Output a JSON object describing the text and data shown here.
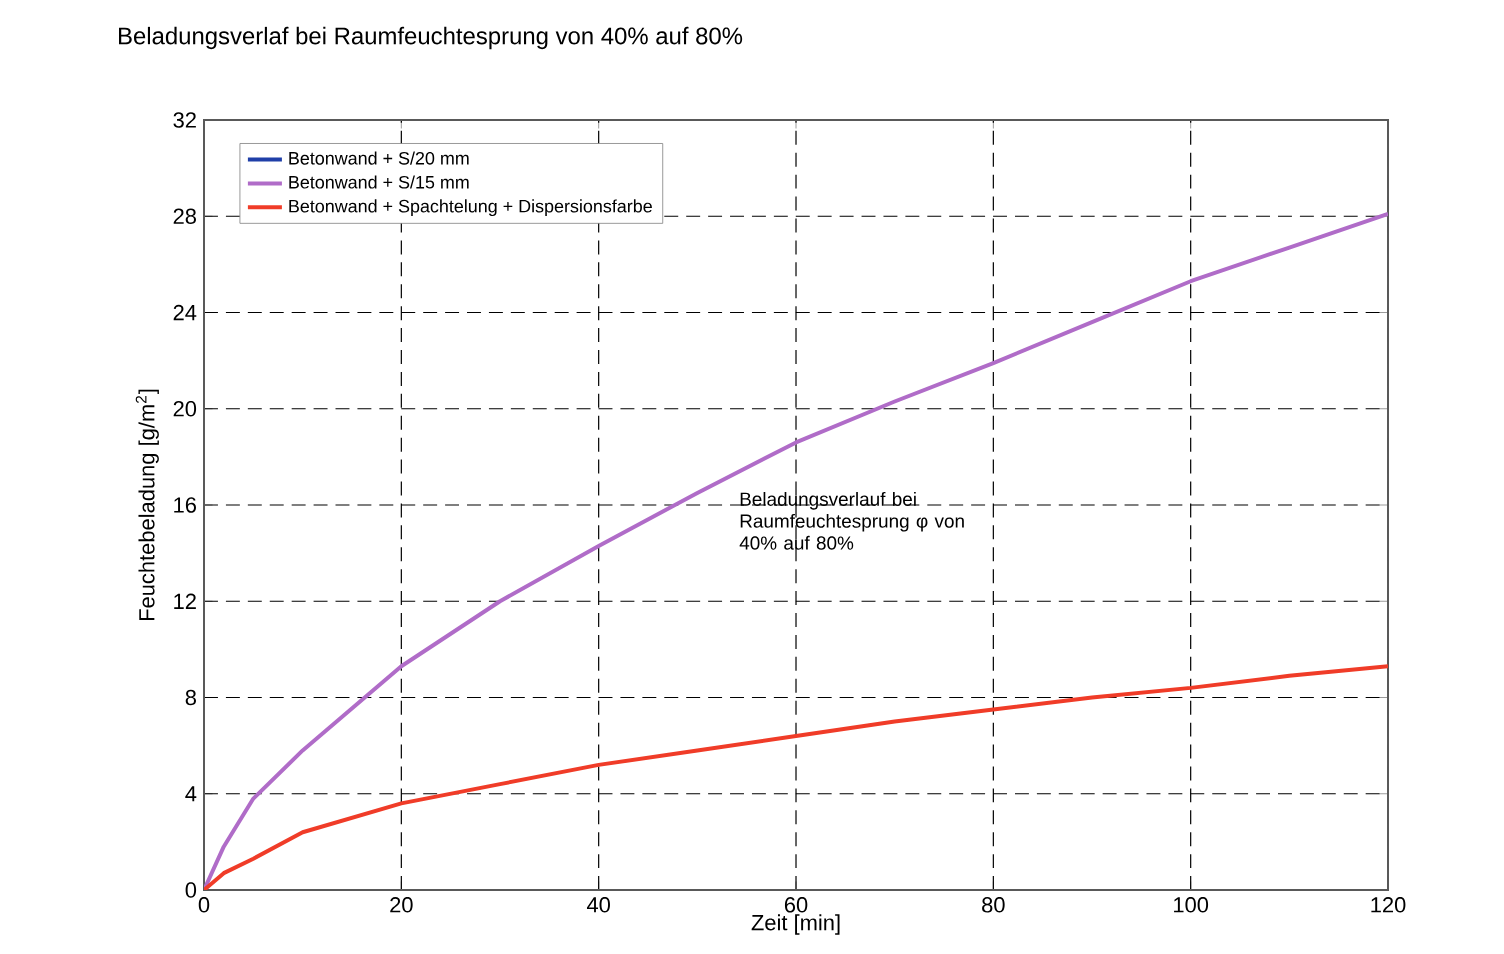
{
  "chart_data": {
    "type": "line",
    "title": "Beladungsverlaf bei Raumfeuchtesprung von 40% auf 80%",
    "xlabel": "Zeit [min]",
    "ylabel": "Feuchtebeladung [g/m$^{2}$]",
    "annotations": [
      "Beladungsverlauf bei Raumfeuchtesprung φ von 40% auf 80%"
    ],
    "x": [
      0,
      2,
      5,
      10,
      20,
      30,
      40,
      50,
      60,
      70,
      80,
      90,
      100,
      110,
      120
    ],
    "series": [
      {
        "name": "Betonwand + S/20 mm",
        "color": "#1f3fa8",
        "values": [
          null,
          null,
          null,
          null,
          null,
          null,
          null,
          null,
          null,
          null,
          null,
          null,
          null,
          null,
          null
        ]
      },
      {
        "name": "Betonwand + S/15 mm",
        "color": "#b06cc8",
        "values": [
          0,
          1.8,
          3.8,
          5.8,
          9.3,
          12.0,
          14.3,
          16.5,
          18.6,
          20.3,
          21.9,
          23.6,
          25.3,
          26.7,
          28.1
        ]
      },
      {
        "name": "Betonwand + Spachtelung + Dispersionsfarbe",
        "color": "#f03c28",
        "values": [
          0,
          0.7,
          1.3,
          2.4,
          3.6,
          4.4,
          5.2,
          5.8,
          6.4,
          7.0,
          7.5,
          8.0,
          8.4,
          8.9,
          9.3
        ]
      }
    ],
    "xlim": [
      0,
      120
    ],
    "ylim": [
      0,
      32
    ],
    "xticks": [
      0,
      20,
      40,
      60,
      80,
      100,
      120
    ],
    "yticks": [
      0,
      4,
      8,
      12,
      16,
      20,
      24,
      28,
      32
    ],
    "grid": true,
    "legend": "top left",
    "marker": "none",
    "line_style": "solid"
  }
}
